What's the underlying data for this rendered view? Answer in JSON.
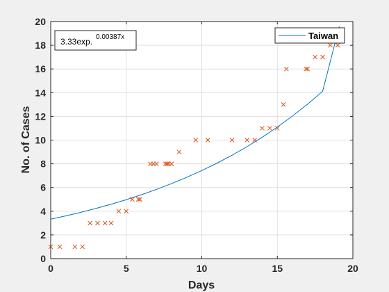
{
  "chart_data": {
    "type": "scatter",
    "xlabel": "Days",
    "ylabel": "No. of Cases",
    "xlim": [
      0,
      20
    ],
    "ylim": [
      0,
      20
    ],
    "xticks": [
      0,
      5,
      10,
      15,
      20
    ],
    "yticks": [
      0,
      2,
      4,
      6,
      8,
      10,
      12,
      14,
      16,
      18,
      20
    ],
    "grid": true,
    "legend_position": "top-right",
    "annotation": {
      "base": "3.33exp.",
      "exponent": "0.00387x"
    },
    "series": [
      {
        "name": "Taiwan",
        "kind": "line",
        "color": "#0072bd",
        "x": [
          0,
          1,
          2,
          3,
          4,
          5,
          6,
          7,
          8,
          9,
          10,
          11,
          12,
          13,
          14,
          15,
          16,
          17,
          18,
          19.1
        ],
        "y": [
          3.33,
          3.61,
          3.91,
          4.24,
          4.59,
          4.97,
          5.39,
          5.84,
          6.33,
          6.86,
          7.43,
          8.05,
          8.72,
          9.45,
          10.24,
          11.1,
          12.03,
          13.03,
          14.12,
          19.6
        ]
      },
      {
        "name": "",
        "kind": "markers",
        "marker": "x",
        "color": "#d95319",
        "x": [
          0,
          0.6,
          1.6,
          2.1,
          2.6,
          3.1,
          3.6,
          4.0,
          4.5,
          5.0,
          5.4,
          5.8,
          5.9,
          6.6,
          6.8,
          7.0,
          7.6,
          7.7,
          7.8,
          8.0,
          8.5,
          9.6,
          10.4,
          12.0,
          13.0,
          13.5,
          14.0,
          14.5,
          15.0,
          15.4,
          15.6,
          16.9,
          17.0,
          17.5,
          18.0,
          18.5,
          19.0
        ],
        "y": [
          1,
          1,
          1,
          1,
          3,
          3,
          3,
          3,
          4,
          4,
          5,
          5,
          5,
          8,
          8,
          8,
          8,
          8,
          8,
          8,
          9,
          10,
          10,
          10,
          10,
          10,
          11,
          11,
          11,
          13,
          16,
          16,
          16,
          17,
          17,
          18,
          18
        ]
      }
    ]
  }
}
